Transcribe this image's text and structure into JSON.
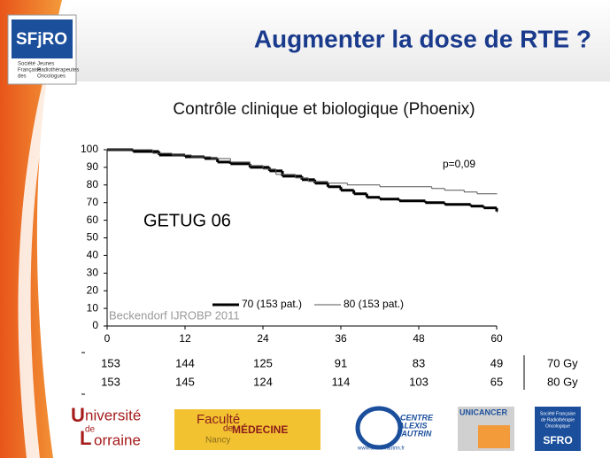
{
  "header": {
    "title": "Augmenter la dose de RTE ?",
    "logo": {
      "name": "SFjRO",
      "caption": [
        "Société",
        "Française",
        "des",
        "Jeunes",
        "Radiothérapeutes",
        "Oncologues"
      ]
    }
  },
  "chart_data": {
    "type": "line",
    "step": true,
    "title": "Contrôle clinique et biologique (Phoenix)",
    "xlim": [
      0,
      60
    ],
    "xticks": [
      0,
      12,
      24,
      36,
      48,
      60
    ],
    "ylim": [
      0,
      100
    ],
    "yticks": [
      0,
      10,
      20,
      30,
      40,
      50,
      60,
      70,
      80,
      90,
      100
    ],
    "series": [
      {
        "name": "70 (153 pat.)",
        "color": "#000000",
        "width": 3,
        "x": [
          0,
          4,
          8,
          12,
          15,
          17,
          19,
          22,
          25,
          27,
          30,
          32,
          34,
          36,
          38,
          40,
          42,
          45,
          49,
          52,
          56,
          58,
          60
        ],
        "values": [
          100,
          99,
          97,
          96,
          95,
          93,
          92,
          90,
          88,
          85,
          83,
          81,
          79,
          77,
          75,
          73,
          72,
          71,
          70,
          69,
          68,
          67,
          65
        ]
      },
      {
        "name": "80 (153 pat.)",
        "color": "#555555",
        "width": 1,
        "x": [
          0,
          6,
          7,
          10,
          13,
          16,
          19,
          22,
          24,
          26,
          29,
          31,
          34,
          37,
          42,
          50,
          52,
          55,
          57,
          60
        ],
        "values": [
          100,
          100,
          98,
          97,
          96,
          95,
          93,
          91,
          89,
          86,
          84,
          82,
          81,
          80,
          79,
          78,
          77,
          76,
          75,
          75
        ]
      }
    ],
    "annotations": [
      "p=0,09",
      "GETUG 06",
      "Beckendorf IJROBP 2011"
    ],
    "risk_table": {
      "rows": [
        {
          "label": "70 Gy",
          "values": [
            "153",
            "144",
            "125",
            "91",
            "83",
            "49"
          ]
        },
        {
          "label": "80 Gy",
          "values": [
            "153",
            "145",
            "124",
            "114",
            "103",
            "65"
          ]
        }
      ]
    }
  },
  "footer": {
    "logos": [
      {
        "name": "université-lorraine",
        "lines": [
          "niversité",
          "de",
          "orraine"
        ],
        "initials": [
          "U",
          "L"
        ]
      },
      {
        "name": "faculte-medecine",
        "lines": [
          "Faculté",
          "de",
          "MÉDECINE",
          "Nancy"
        ]
      },
      {
        "name": "centre-alexis-vautrin",
        "lines": [
          "CENTRE",
          "ALEXIS",
          "VAUTRIN",
          "www.alexisvautrin.fr"
        ]
      },
      {
        "name": "unicancer",
        "lines": [
          "UNICANCER"
        ]
      },
      {
        "name": "sfro",
        "lines": [
          "Société Française",
          "de Radiothérapie",
          "Oncologique",
          "SFRO"
        ]
      }
    ]
  }
}
